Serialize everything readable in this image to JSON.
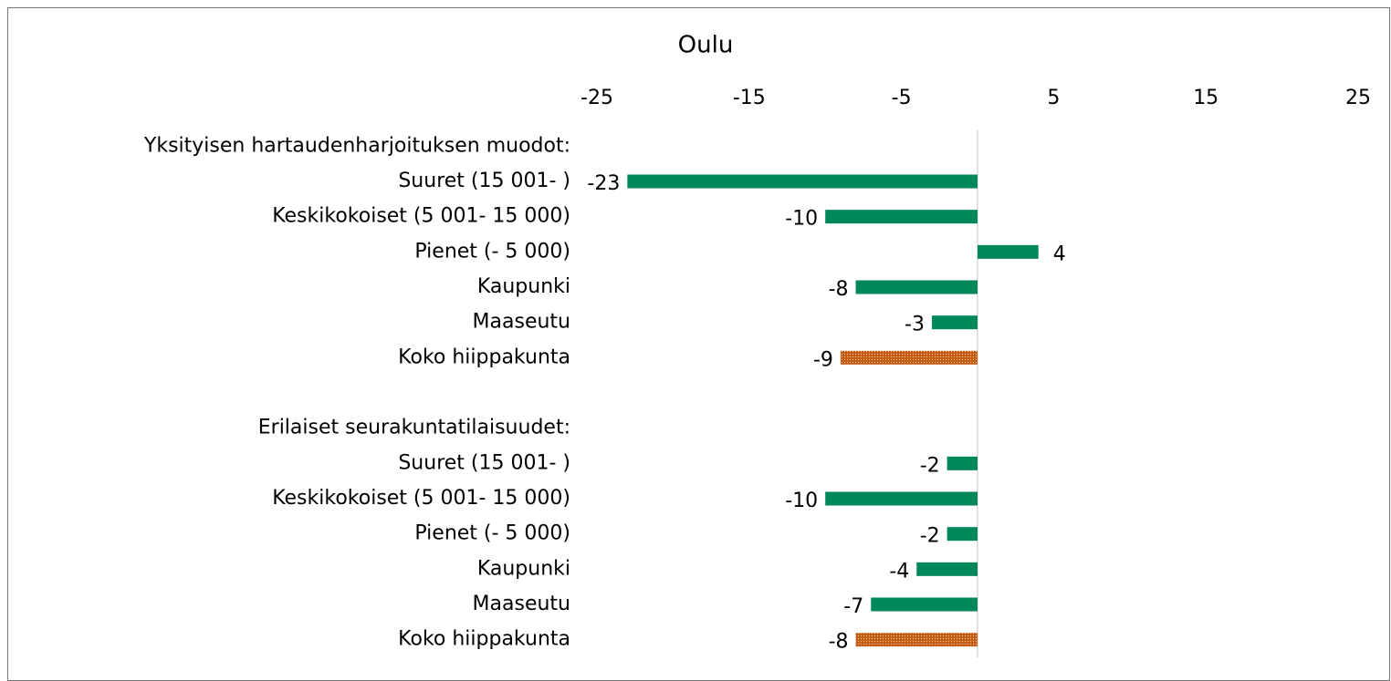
{
  "chart_data": {
    "type": "hbar",
    "title": "Oulu",
    "categories": [
      "Yksityisen hartaudenharjoituksen muodot:",
      "Suuret (15 001- )",
      "Keskikokoiset (5 001- 15 000)",
      "Pienet (- 5 000)",
      "Kaupunki",
      "Maaseutu",
      "Koko hiippakunta",
      null,
      "Erilaiset seurakuntatilaisuudet:",
      "Suuret (15 001- )",
      "Keskikokoiset (5 001- 15 000)",
      "Pienet (- 5 000)",
      "Kaupunki",
      "Maaseutu",
      "Koko hiippakunta"
    ],
    "values": [
      null,
      -23,
      -10,
      4,
      -8,
      -3,
      -9,
      null,
      null,
      -2,
      -10,
      -2,
      -4,
      -7,
      -8
    ],
    "colors": [
      null,
      "#00875a",
      "#00875a",
      "#00875a",
      "#00875a",
      "#00875a",
      "#c55a11",
      null,
      null,
      "#00875a",
      "#00875a",
      "#00875a",
      "#00875a",
      "#00875a",
      "#c55a11"
    ],
    "xlim": [
      -25,
      25
    ],
    "xticks": [
      -25,
      -15,
      -5,
      5,
      15,
      25
    ],
    "grid": false
  }
}
